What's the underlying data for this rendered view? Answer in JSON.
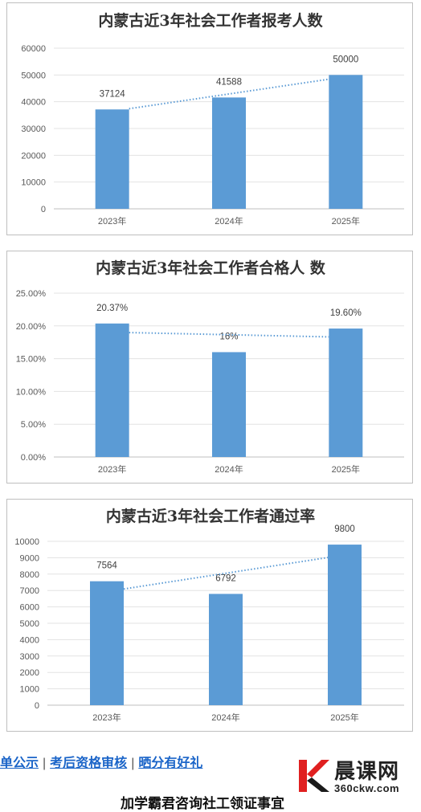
{
  "chart_data": [
    {
      "type": "bar",
      "title": "内蒙古近3年社会工作者报考人数",
      "categories": [
        "2023年",
        "2024年",
        "2025年"
      ],
      "values": [
        37124,
        41588,
        50000
      ],
      "data_labels": [
        "37124",
        "41588",
        "50000"
      ],
      "yticks": [
        "0",
        "10000",
        "20000",
        "30000",
        "40000",
        "50000",
        "60000"
      ],
      "ylim": [
        0,
        60000
      ],
      "trendline": "linear",
      "bar_color": "#5b9bd5",
      "trend_color": "#5b9bd5",
      "grid": true
    },
    {
      "type": "bar",
      "title": "内蒙古近3年社会工作者合格人 数",
      "categories": [
        "2023年",
        "2024年",
        "2025年"
      ],
      "values": [
        20.37,
        16,
        19.6
      ],
      "data_labels": [
        "20.37%",
        "16%",
        "19.60%"
      ],
      "yticks": [
        "0.00%",
        "5.00%",
        "10.00%",
        "15.00%",
        "20.00%",
        "25.00%"
      ],
      "ylim": [
        0,
        25
      ],
      "trendline": "linear",
      "bar_color": "#5b9bd5",
      "trend_color": "#5b9bd5",
      "grid": true
    },
    {
      "type": "bar",
      "title": "内蒙古近3年社会工作者通过率",
      "categories": [
        "2023年",
        "2024年",
        "2025年"
      ],
      "values": [
        7564,
        6792,
        9800
      ],
      "data_labels": [
        "7564",
        "6792",
        "9800"
      ],
      "yticks": [
        "0",
        "1000",
        "2000",
        "3000",
        "4000",
        "5000",
        "6000",
        "7000",
        "8000",
        "9000",
        "10000"
      ],
      "ylim": [
        0,
        10000
      ],
      "trendline": "linear",
      "bar_color": "#5b9bd5",
      "trend_color": "#5b9bd5",
      "grid": true
    }
  ],
  "footer": {
    "links": [
      "单公示",
      "考后资格审核",
      "晒分有好礼"
    ],
    "separator": "|",
    "brand_name": "晨课网",
    "brand_url": "360ckw.com",
    "caption": "加学霸君咨询社工领证事宜"
  },
  "colors": {
    "link": "#1a64c8",
    "logo_red": "#e02020",
    "logo_dark": "#1a1a1a"
  }
}
